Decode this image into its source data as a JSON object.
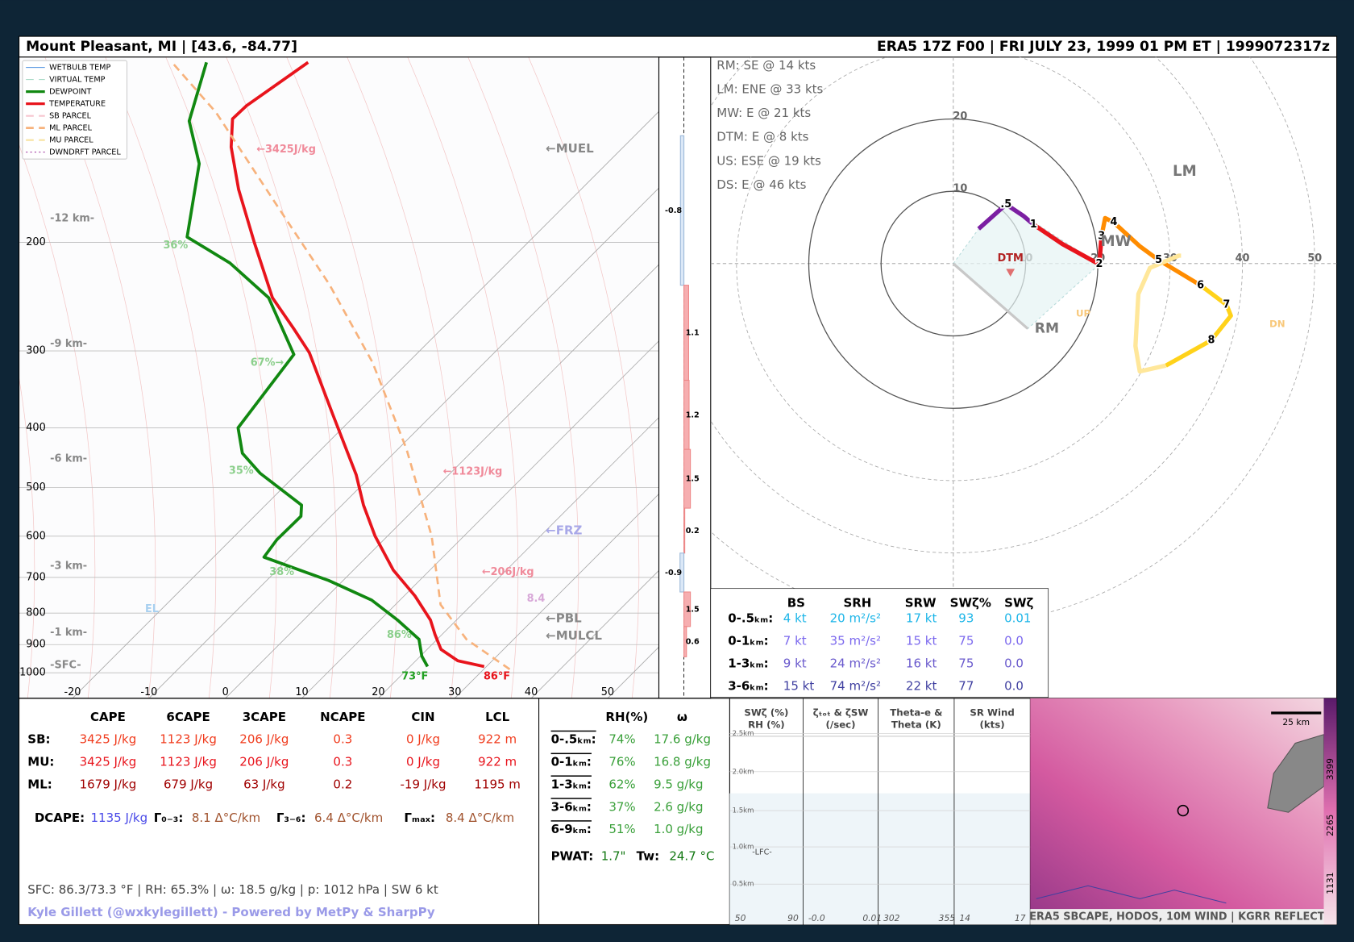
{
  "header": {
    "location": "Mount Pleasant, MI  |  [43.6, -84.77]",
    "run": "ERA5 17Z F00  |  FRI JULY 23, 1999  01 PM ET  |  1999072317z"
  },
  "chart_data": [
    {
      "type": "skewt",
      "xlim": [
        -27,
        56.7
      ],
      "ylim": [
        1100,
        100
      ],
      "log_y": true,
      "xticks": [
        -20,
        -10,
        0,
        10,
        20,
        30,
        40,
        50
      ],
      "yticks": [
        200,
        300,
        400,
        500,
        600,
        700,
        800,
        900,
        1000
      ],
      "grid": true,
      "series": [
        {
          "name": "WETBULB TEMP",
          "color": "#4a8fe0",
          "style": "solid",
          "width": 1
        },
        {
          "name": "VIRTUAL TEMP",
          "color": "#9fd6c0",
          "style": "dashed",
          "width": 1
        },
        {
          "name": "DEWPOINT",
          "color": "#118811",
          "style": "solid",
          "width": 3.5,
          "pressure": [
            977,
            940,
            882,
            821,
            762,
            708,
            649,
            608,
            557,
            534,
            474,
            440,
            400,
            304,
            246,
            216,
            196,
            149,
            127,
            102
          ],
          "values": [
            22.3,
            20.2,
            17.6,
            12.3,
            6.3,
            -1.9,
            -13.4,
            -14.0,
            -13.9,
            -15.3,
            -24.9,
            -29.8,
            -33.7,
            -36.0,
            -46.7,
            -56.3,
            -65.3,
            -73.3,
            -80.2,
            -85.6
          ]
        },
        {
          "name": "TEMPERATURE",
          "color": "#e8141c",
          "style": "solid",
          "width": 3.5,
          "pressure": [
            977,
            956,
            916,
            867,
            821,
            750,
            681,
            600,
            534,
            477,
            381,
            302,
            276,
            246,
            200,
            164,
            140,
            126,
            120,
            102
          ],
          "values": [
            29.7,
            25.5,
            21.8,
            19.1,
            16.6,
            11.4,
            5.2,
            -1.6,
            -7.2,
            -12.1,
            -23.0,
            -34.2,
            -39.4,
            -46.2,
            -55.8,
            -64.8,
            -71.3,
            -74.8,
            -74.7,
            -72.3
          ]
        },
        {
          "name": "SB PARCEL",
          "color": "#f7c6cf",
          "style": "dashed",
          "width": 2
        },
        {
          "name": "ML PARCEL",
          "color": "#f7b27c",
          "style": "dashed",
          "width": 2.5,
          "pressure": [
            987,
            882,
            775,
            600,
            433,
            313,
            234,
            175,
            123,
            102
          ],
          "values": [
            33.4,
            23.8,
            15.9,
            5.8,
            -8.9,
            -24.7,
            -40.5,
            -57.4,
            -77.8,
            -90.1
          ]
        },
        {
          "name": "MU PARCEL",
          "color": "#f8e3a0",
          "style": "dashed",
          "width": 2
        },
        {
          "name": "DWNDRFT PARCEL",
          "color": "#9a2a9a",
          "style": "dotted",
          "width": 1
        }
      ],
      "annotations": [
        {
          "text": "-12 km-",
          "color": "#888888"
        },
        {
          "text": "-9 km-",
          "color": "#888888"
        },
        {
          "text": "-6 km-",
          "color": "#888888"
        },
        {
          "text": "-3 km-",
          "color": "#888888"
        },
        {
          "text": "-1 km-",
          "color": "#888888"
        },
        {
          "text": "-SFC-",
          "color": "#888888"
        },
        {
          "text": "←3425J/kg",
          "color": "#f08a9a"
        },
        {
          "text": "←1123J/kg",
          "color": "#f08a9a"
        },
        {
          "text": "←206J/kg",
          "color": "#f08a9a"
        },
        {
          "text": "36%",
          "color": "#8ccf8c"
        },
        {
          "text": "67%→",
          "color": "#8ccf8c"
        },
        {
          "text": "35%",
          "color": "#8ccf8c"
        },
        {
          "text": "38%",
          "color": "#8ccf8c"
        },
        {
          "text": "86%",
          "color": "#8ccf8c"
        },
        {
          "text": "←MUEL",
          "color": "#888888"
        },
        {
          "text": "←FRZ",
          "color": "#a8a8e8"
        },
        {
          "text": "←PBL",
          "color": "#888888"
        },
        {
          "text": "←MULCL",
          "color": "#888888"
        },
        {
          "text": "8.4",
          "color": "#d8a8d8"
        },
        {
          "text": "EL",
          "color": "#a8d0f0"
        },
        {
          "text": "73°F",
          "color": "#22a022"
        },
        {
          "text": "86°F",
          "color": "#e8141c"
        }
      ]
    },
    {
      "type": "hodograph",
      "rings": [
        10,
        20,
        30,
        40,
        50
      ],
      "series": [
        {
          "color": "#7b1fa2",
          "u": [
            3.5,
            7.3,
            9.7,
            11.1
          ],
          "v": [
            4.8,
            8.2,
            6.6,
            5.4
          ],
          "labels": [
            null,
            ".5",
            null,
            "1"
          ]
        },
        {
          "color": "#e8141c",
          "u": [
            11.1,
            15.1,
            20.2,
            20.4,
            20.5
          ],
          "v": [
            5.4,
            2.7,
            -0.1,
            2.4,
            3.8
          ],
          "labels": [
            null,
            null,
            "2",
            null,
            "3"
          ]
        },
        {
          "color": "#ff8c00",
          "u": [
            20.5,
            21.0,
            22.2,
            25.8,
            28.4,
            34.2
          ],
          "v": [
            3.8,
            6.3,
            5.7,
            2.4,
            0.5,
            -3.0
          ],
          "labels": [
            null,
            null,
            "4",
            null,
            "5",
            "6"
          ]
        },
        {
          "color": "#ffd21a",
          "u": [
            34.2,
            37.8,
            38.4,
            35.7,
            29.4
          ],
          "v": [
            -3.0,
            -5.7,
            -7.2,
            -10.6,
            -14.1
          ],
          "labels": [
            null,
            "7",
            null,
            "8",
            null
          ]
        },
        {
          "color": "#ffe79a",
          "u": [
            29.4,
            25.8,
            25.2,
            25.6,
            27.2,
            31.2,
            31.5
          ],
          "v": [
            -14.1,
            -14.9,
            -11.4,
            -4.2,
            -0.6,
            1.1,
            1.1
          ],
          "labels": [
            null,
            null,
            null,
            null,
            null,
            null,
            null
          ]
        }
      ],
      "markers": [
        {
          "label": "RM",
          "u": 10.3,
          "v": -9.0,
          "color": "#777777"
        },
        {
          "label": "DTM",
          "u": 7.9,
          "v": -1.2,
          "color": "#b22222"
        },
        {
          "label": "MW",
          "u": 22.5,
          "v": 3.0,
          "color": "#777777"
        },
        {
          "label": "LM",
          "u": 32.0,
          "v": 12.7,
          "color": "#777777"
        }
      ],
      "annotations": [
        {
          "text": "UP",
          "color": "#f8c87a"
        },
        {
          "text": "DN",
          "color": "#f8c87a"
        }
      ]
    }
  ],
  "storm_motion": [
    "RM: SE @ 14 kts",
    "LM: ENE @ 33 kts",
    "MW: E @ 21 kts",
    "DTM: E @ 8 kts",
    "US: ESE @ 19 kts",
    "DS: E @ 46 kts"
  ],
  "lapse_strip": [
    -0.8,
    1.1,
    1.2,
    1.5,
    0.2,
    -0.9,
    1.5,
    0.6
  ],
  "shear_table": {
    "headers": [
      "BS",
      "SRH",
      "SRW",
      "SWζ%",
      "SWζ"
    ],
    "rows": [
      {
        "label": "0-.5ₖₘ:",
        "color": "#1cb5e8",
        "cells": [
          "4 kt",
          "20 m²/s²",
          "17 kt",
          "93",
          "0.01"
        ]
      },
      {
        "label": "0-1ₖₘ:",
        "color": "#7b68ee",
        "cells": [
          "7 kt",
          "35 m²/s²",
          "15 kt",
          "75",
          "0.0"
        ]
      },
      {
        "label": "1-3ₖₘ:",
        "color": "#6a5acd",
        "cells": [
          "9 kt",
          "24 m²/s²",
          "16 kt",
          "75",
          "0.0"
        ]
      },
      {
        "label": "3-6ₖₘ:",
        "color": "#3f3fa0",
        "cells": [
          "15 kt",
          "74 m²/s²",
          "22 kt",
          "77",
          "0.0"
        ]
      }
    ]
  },
  "thermo_table": {
    "headers": [
      "CAPE",
      "6CAPE",
      "3CAPE",
      "NCAPE",
      "CIN",
      "LCL"
    ],
    "rows": [
      {
        "label": "SB:",
        "color": "#f03c1e",
        "cells": [
          "3425 J/kg",
          "1123 J/kg",
          "206 J/kg",
          "0.3",
          "0 J/kg",
          "922 m"
        ]
      },
      {
        "label": "MU:",
        "color": "#e8141c",
        "cells": [
          "3425 J/kg",
          "1123 J/kg",
          "206 J/kg",
          "0.3",
          "0 J/kg",
          "922 m"
        ]
      },
      {
        "label": "ML:",
        "color": "#a00000",
        "cells": [
          "1679 J/kg",
          "679 J/kg",
          "63 J/kg",
          "0.2",
          "-19 J/kg",
          "1195 m"
        ]
      }
    ]
  },
  "lapse_rates": [
    {
      "label": "DCAPE:",
      "value": "1135 J/kg",
      "color": "#4a4ae8"
    },
    {
      "label": "Γ₀₋₃:",
      "value": "8.1 Δ°C/km",
      "color": "#a0522d"
    },
    {
      "label": "Γ₃₋₆:",
      "value": "6.4 Δ°C/km",
      "color": "#a0522d"
    },
    {
      "label": "Γₘₐₓ:",
      "value": "8.4 Δ°C/km",
      "color": "#a0522d"
    }
  ],
  "surface": "SFC: 86.3/73.3 °F | RH: 65.3% | ω: 18.5 g/kg | p: 1012 hPa | SW 6 kt",
  "credit": "Kyle Gillett (@wxkylegillett) - Powered by MetPy & SharpPy",
  "moisture_table": {
    "headers": [
      "RH(%)",
      "ω"
    ],
    "rows": [
      {
        "label": "0-.5ₖₘ:",
        "cells": [
          "74%",
          "17.6 g/kg"
        ]
      },
      {
        "label": "0-1ₖₘ:",
        "cells": [
          "76%",
          "16.8 g/kg"
        ]
      },
      {
        "label": "1-3ₖₘ:",
        "cells": [
          "62%",
          "9.5 g/kg"
        ]
      },
      {
        "label": "3-6ₖₘ:",
        "cells": [
          "37%",
          "2.6 g/kg"
        ]
      },
      {
        "label": "6-9ₖₘ:",
        "cells": [
          "51%",
          "1.0 g/kg"
        ]
      }
    ],
    "pwat_label": "PWAT:",
    "pwat": "1.7\"",
    "tw_label": "Tw:",
    "tw": "24.7 °C"
  },
  "profile_panels": [
    {
      "title": [
        "SWζ (%)",
        "RH (%)"
      ],
      "ticks": [
        "50",
        "90"
      ]
    },
    {
      "title": [
        "ζₜₒₜ & ζSW",
        "(/sec)"
      ],
      "ticks": [
        "-0.0",
        "0.01"
      ]
    },
    {
      "title": [
        "Theta-e &",
        "Theta (K)"
      ],
      "ticks": [
        "302",
        "355"
      ]
    },
    {
      "title": [
        "SR Wind",
        "(kts)"
      ],
      "ticks": [
        "14",
        "17"
      ]
    }
  ],
  "profile_heights": [
    "2.5km",
    "2.0km",
    "1.5km",
    "1.0km",
    "0.5km"
  ],
  "lfc_label": "-LFC-",
  "map": {
    "caption": "ERA5 SBCAPE, HODOS, 10M WIND | KGRR REFLECT",
    "scale": "25 km",
    "colorbar_labels": [
      "3399",
      "2265",
      "1131"
    ]
  }
}
